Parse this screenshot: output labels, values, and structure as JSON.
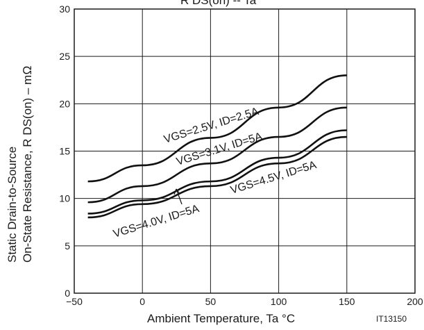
{
  "chart_data": {
    "type": "line",
    "title": "R DS(on) -- Ta",
    "xlabel": "Ambient Temperature, Ta  °C",
    "ylabel_lines": [
      "Static Drain-to-Source",
      "On-State Resistance, R DS(on)  –  mΩ"
    ],
    "xlim": [
      -50,
      200
    ],
    "ylim": [
      0,
      30
    ],
    "xticks": [
      -50,
      0,
      50,
      100,
      150,
      200
    ],
    "xtick_labels": [
      "−50",
      "0",
      "50",
      "100",
      "150",
      "200"
    ],
    "yticks": [
      0,
      5,
      10,
      15,
      20,
      25,
      30
    ],
    "ytick_labels": [
      "0",
      "5",
      "10",
      "15",
      "20",
      "25",
      "30"
    ],
    "grid": true,
    "series": [
      {
        "name": "VGS=2.5V, ID=2.5A",
        "x": [
          -40,
          0,
          50,
          100,
          150
        ],
        "y": [
          11.8,
          13.5,
          16.4,
          19.6,
          23.0
        ]
      },
      {
        "name": "VGS=3.1V, ID=5A",
        "x": [
          -40,
          0,
          50,
          100,
          150
        ],
        "y": [
          9.6,
          11.3,
          13.7,
          16.5,
          19.6
        ]
      },
      {
        "name": "VGS=4.0V, ID=5A",
        "x": [
          -40,
          0,
          50,
          100,
          150
        ],
        "y": [
          8.4,
          9.8,
          11.8,
          14.3,
          17.2
        ]
      },
      {
        "name": "VGS=4.5V, ID=5A",
        "x": [
          -40,
          0,
          50,
          100,
          150
        ],
        "y": [
          8.0,
          9.4,
          11.3,
          13.7,
          16.5
        ]
      }
    ],
    "annotations": [
      {
        "text": "VGS=2.5V, ID=2.5A"
      },
      {
        "text": "VGS=3.1V, ID=5A"
      },
      {
        "text": "VGS=4.5V, ID=5A"
      },
      {
        "text": "VGS=4.0V, ID=5A"
      }
    ],
    "figure_id": "IT13150"
  }
}
